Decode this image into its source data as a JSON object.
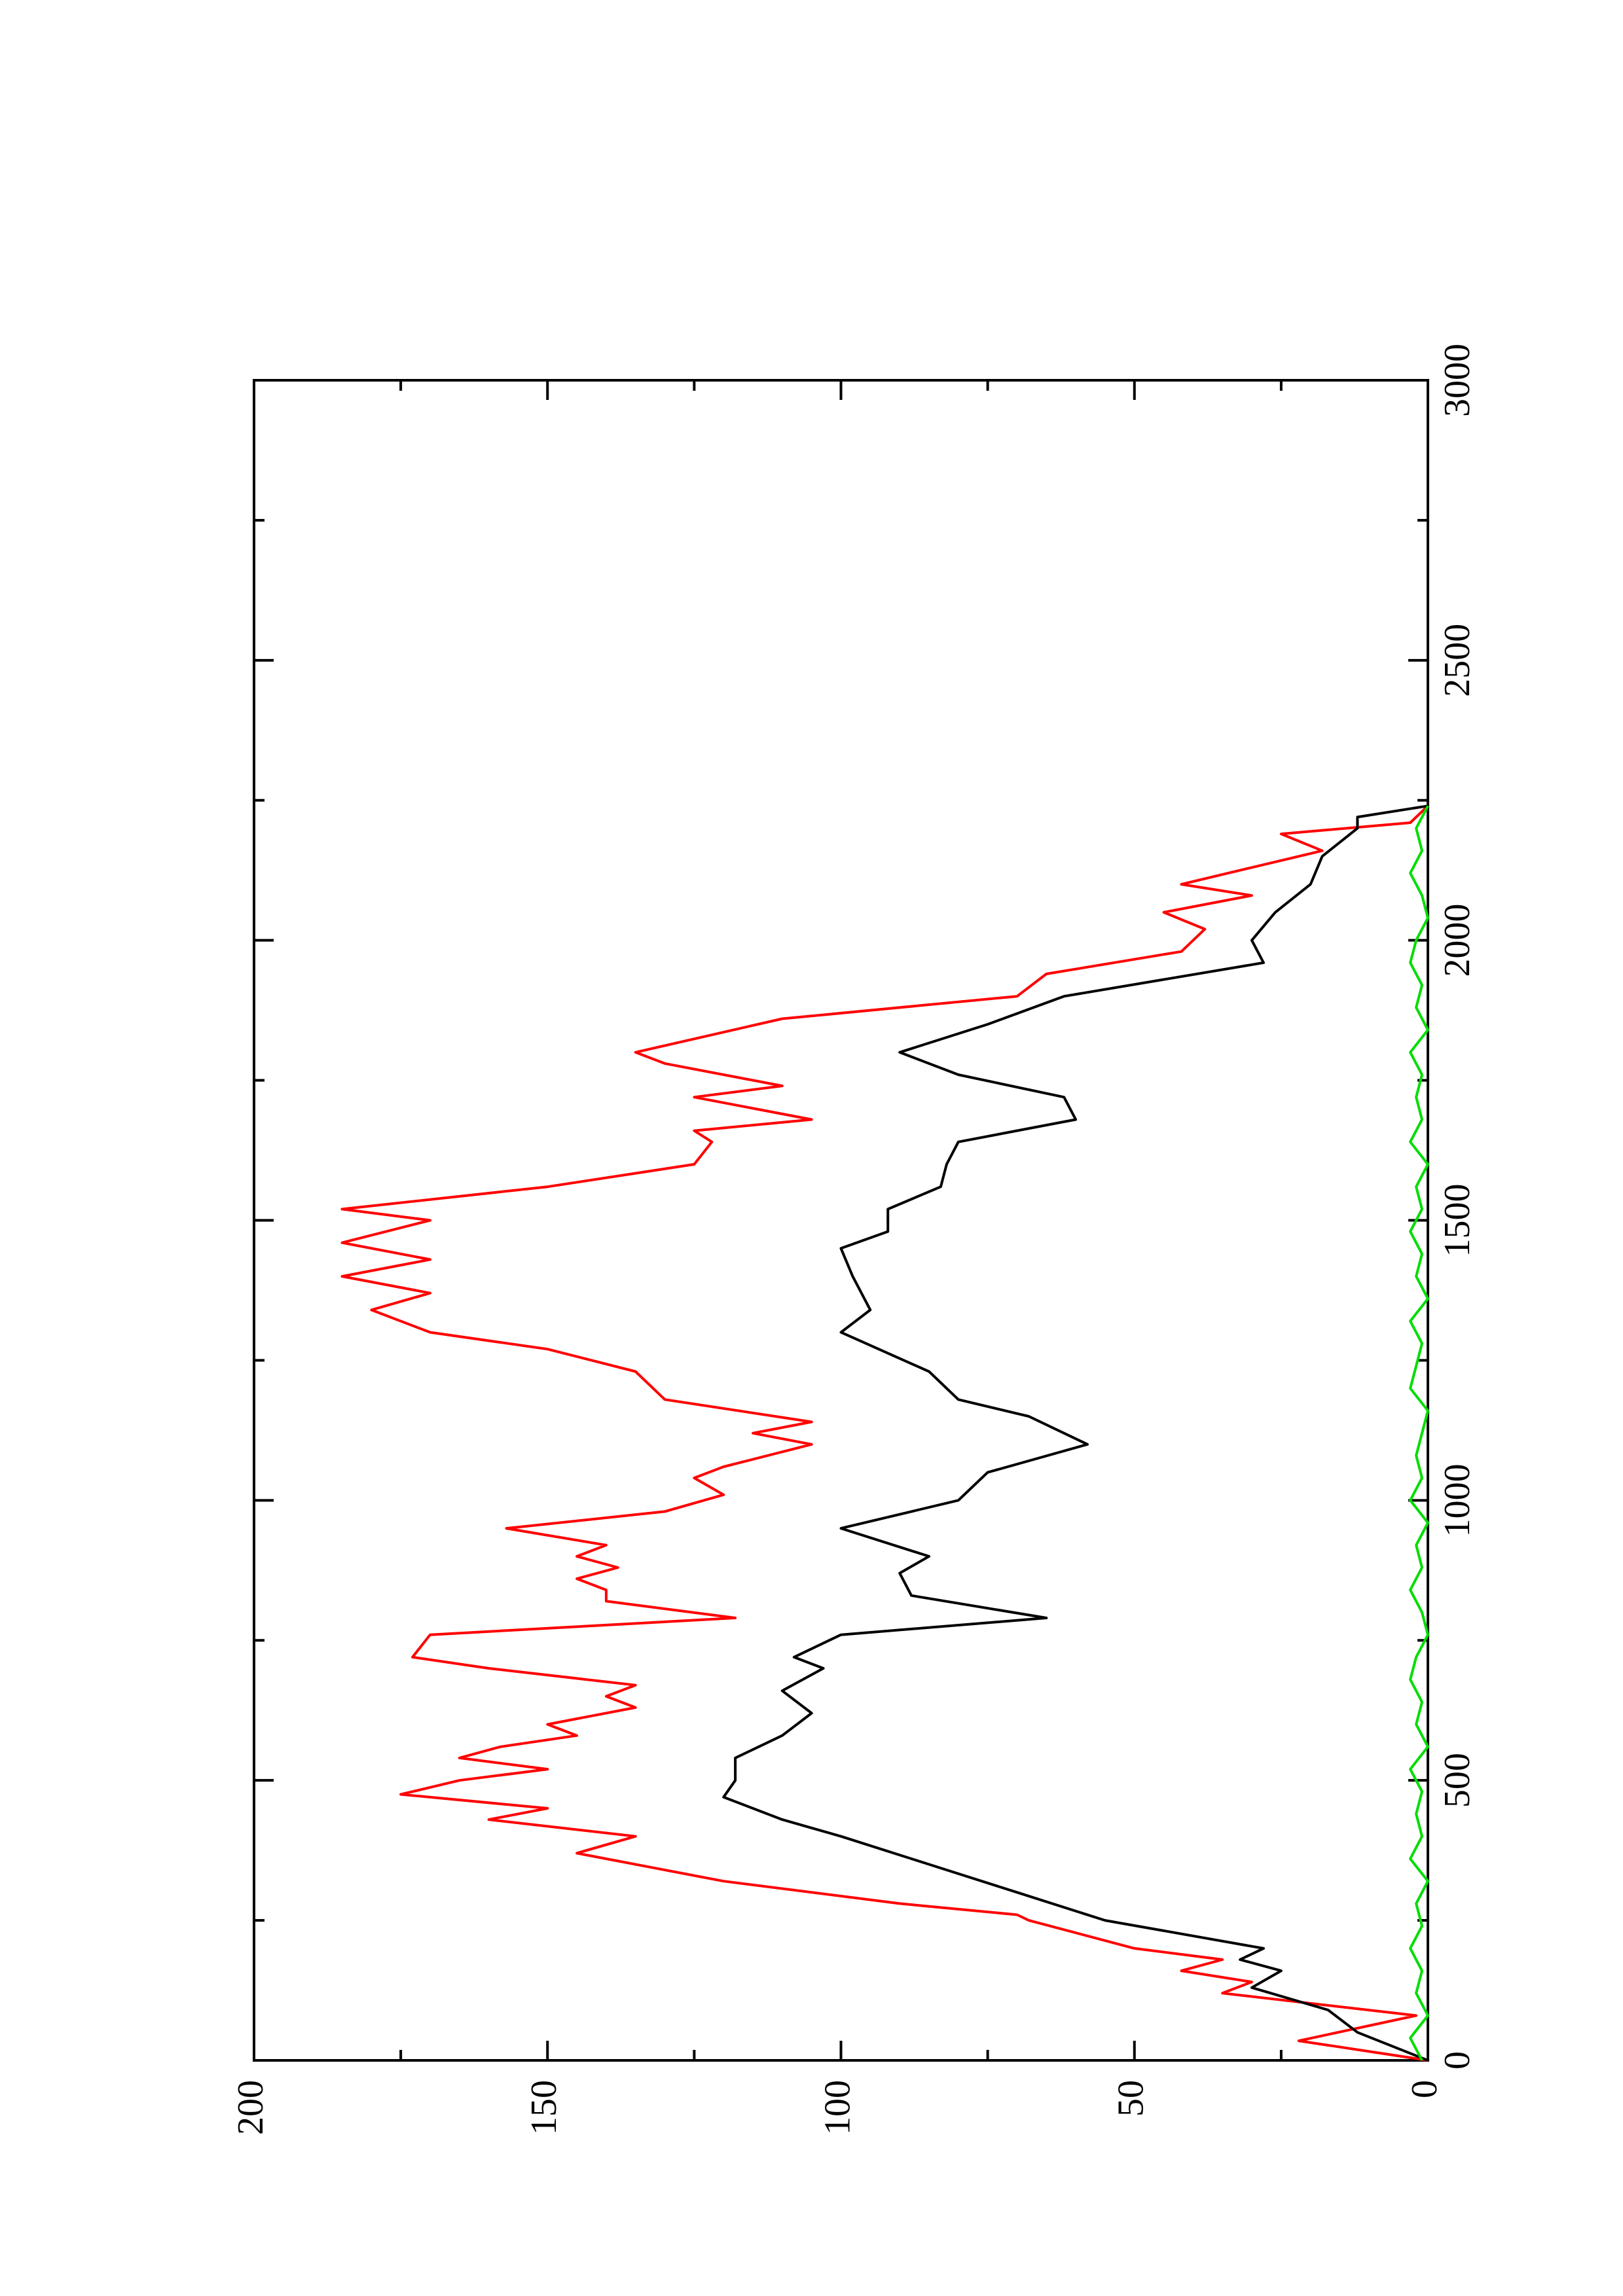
{
  "chart_data": {
    "type": "line",
    "xlim": [
      0,
      3000
    ],
    "ylim": [
      0,
      200
    ],
    "xticks": [
      0,
      500,
      1000,
      1500,
      2000,
      2500,
      3000
    ],
    "xminorticks": [
      250,
      750,
      1250,
      1750,
      2250,
      2750
    ],
    "yticks": [
      0,
      50,
      100,
      150,
      200
    ],
    "yminorticks": [
      25,
      75,
      125,
      175
    ],
    "rotated": true,
    "series": [
      {
        "color": "#ff0000",
        "x": [
          0,
          35,
          80,
          120,
          140,
          160,
          180,
          200,
          250,
          260,
          280,
          320,
          370,
          400,
          430,
          450,
          475,
          500,
          520,
          540,
          560,
          580,
          600,
          630,
          650,
          670,
          700,
          720,
          760,
          790,
          820,
          840,
          860,
          880,
          900,
          920,
          950,
          980,
          1010,
          1040,
          1060,
          1100,
          1120,
          1140,
          1180,
          1230,
          1270,
          1300,
          1340,
          1370,
          1400,
          1430,
          1460,
          1500,
          1520,
          1560,
          1600,
          1640,
          1660,
          1680,
          1720,
          1740,
          1780,
          1800,
          1860,
          1900,
          1940,
          1980,
          2020,
          2050,
          2080,
          2100,
          2130,
          2160,
          2190,
          2210,
          2240
        ],
        "values": [
          0,
          22,
          2,
          35,
          30,
          42,
          35,
          50,
          68,
          70,
          90,
          120,
          145,
          135,
          160,
          150,
          175,
          165,
          150,
          165,
          158,
          145,
          150,
          135,
          140,
          135,
          160,
          173,
          170,
          118,
          140,
          140,
          145,
          138,
          145,
          140,
          157,
          130,
          120,
          125,
          120,
          105,
          115,
          105,
          130,
          135,
          150,
          170,
          180,
          170,
          185,
          170,
          185,
          170,
          185,
          150,
          125,
          122,
          125,
          105,
          125,
          110,
          130,
          135,
          110,
          70,
          65,
          42,
          38,
          45,
          30,
          42,
          30,
          18,
          25,
          3,
          0
        ]
      },
      {
        "color": "#000000",
        "x": [
          0,
          50,
          90,
          130,
          160,
          180,
          200,
          250,
          300,
          350,
          400,
          430,
          470,
          500,
          540,
          580,
          620,
          660,
          700,
          720,
          760,
          790,
          830,
          870,
          900,
          950,
          1000,
          1050,
          1100,
          1150,
          1180,
          1230,
          1300,
          1340,
          1400,
          1450,
          1480,
          1520,
          1560,
          1600,
          1640,
          1680,
          1720,
          1760,
          1800,
          1850,
          1900,
          1960,
          2000,
          2050,
          2100,
          2150,
          2200,
          2220,
          2240
        ],
        "values": [
          0,
          12,
          17,
          30,
          25,
          32,
          28,
          55,
          70,
          85,
          100,
          110,
          120,
          118,
          118,
          110,
          105,
          110,
          103,
          108,
          100,
          65,
          88,
          90,
          85,
          100,
          80,
          75,
          58,
          68,
          80,
          85,
          100,
          95,
          98,
          100,
          92,
          92,
          83,
          82,
          80,
          60,
          62,
          80,
          90,
          75,
          62,
          28,
          30,
          26,
          20,
          18,
          12,
          12,
          0
        ]
      },
      {
        "color": "#00dd00",
        "x": [
          0,
          40,
          80,
          120,
          160,
          200,
          240,
          280,
          320,
          360,
          400,
          440,
          480,
          520,
          560,
          600,
          640,
          680,
          720,
          760,
          800,
          840,
          880,
          920,
          960,
          1000,
          1040,
          1080,
          1120,
          1160,
          1200,
          1240,
          1280,
          1320,
          1360,
          1400,
          1440,
          1480,
          1520,
          1560,
          1600,
          1640,
          1680,
          1720,
          1760,
          1800,
          1840,
          1880,
          1920,
          1960,
          2000,
          2040,
          2080,
          2120,
          2160,
          2200,
          2240
        ],
        "values": [
          1,
          3,
          0,
          2,
          1,
          3,
          1,
          2,
          0,
          3,
          1,
          2,
          1,
          3,
          0,
          2,
          1,
          3,
          2,
          0,
          1,
          3,
          1,
          2,
          0,
          3,
          1,
          2,
          1,
          0,
          3,
          2,
          1,
          3,
          0,
          2,
          1,
          3,
          1,
          2,
          0,
          3,
          1,
          2,
          1,
          3,
          0,
          2,
          1,
          3,
          2,
          0,
          1,
          3,
          1,
          2,
          0
        ]
      }
    ]
  }
}
